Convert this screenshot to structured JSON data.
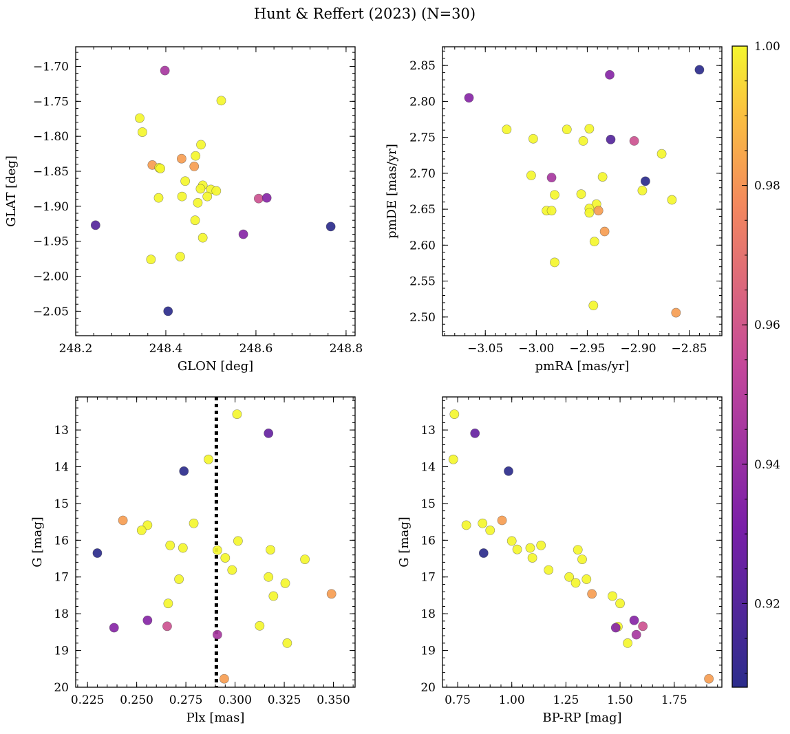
{
  "chart_data": {
    "type": "scatter",
    "title": "Hunt & Reffert (2023) (N=30)",
    "colormap": "plasma",
    "colorbar": {
      "min": 0.908,
      "max": 1.0,
      "ticks": [
        0.92,
        0.94,
        0.96,
        0.98,
        1.0
      ],
      "tick_labels": [
        "0.92",
        "0.94",
        "0.96",
        "0.98",
        "1.00"
      ]
    },
    "grid": false,
    "panels": [
      {
        "key": "pos",
        "xlabel": "GLON [deg]",
        "ylabel": "GLAT [deg]",
        "xlim": [
          248.2,
          248.82
        ],
        "ylim": [
          -2.085,
          -1.672
        ],
        "y_inverted": false,
        "xticks": [
          248.2,
          248.4,
          248.6,
          248.8
        ],
        "xtick_labels": [
          "248.2",
          "248.4",
          "248.6",
          "248.8"
        ],
        "yticks": [
          -2.05,
          -2.0,
          -1.95,
          -1.9,
          -1.85,
          -1.8,
          -1.75,
          -1.7
        ],
        "ytick_labels": [
          "−2.05",
          "−2.00",
          "−1.95",
          "−1.90",
          "−1.85",
          "−1.80",
          "−1.75",
          "−1.70"
        ],
        "x_minor_step": 0.04,
        "y_minor_step": 0.01,
        "points": [
          {
            "x": 248.398,
            "y": -1.706,
            "c": 0.945
          },
          {
            "x": 248.523,
            "y": -1.749,
            "c": 1.0
          },
          {
            "x": 248.342,
            "y": -1.774,
            "c": 1.0
          },
          {
            "x": 248.348,
            "y": -1.794,
            "c": 1.0
          },
          {
            "x": 248.478,
            "y": -1.812,
            "c": 1.0
          },
          {
            "x": 248.466,
            "y": -1.828,
            "c": 1.0
          },
          {
            "x": 248.435,
            "y": -1.832,
            "c": 0.982
          },
          {
            "x": 248.37,
            "y": -1.841,
            "c": 0.982
          },
          {
            "x": 248.463,
            "y": -1.843,
            "c": 0.982
          },
          {
            "x": 248.385,
            "y": -1.845,
            "c": 1.0
          },
          {
            "x": 248.388,
            "y": -1.846,
            "c": 1.0
          },
          {
            "x": 248.443,
            "y": -1.864,
            "c": 1.0
          },
          {
            "x": 248.482,
            "y": -1.87,
            "c": 1.0
          },
          {
            "x": 248.477,
            "y": -1.875,
            "c": 1.0
          },
          {
            "x": 248.5,
            "y": -1.876,
            "c": 1.0
          },
          {
            "x": 248.512,
            "y": -1.878,
            "c": 1.0
          },
          {
            "x": 248.492,
            "y": -1.886,
            "c": 1.0
          },
          {
            "x": 248.436,
            "y": -1.886,
            "c": 1.0
          },
          {
            "x": 248.384,
            "y": -1.888,
            "c": 1.0
          },
          {
            "x": 248.606,
            "y": -1.889,
            "c": 0.958
          },
          {
            "x": 248.624,
            "y": -1.888,
            "c": 0.935
          },
          {
            "x": 248.471,
            "y": -1.895,
            "c": 1.0
          },
          {
            "x": 248.465,
            "y": -1.92,
            "c": 1.0
          },
          {
            "x": 248.244,
            "y": -1.927,
            "c": 0.92
          },
          {
            "x": 248.766,
            "y": -1.929,
            "c": 0.908
          },
          {
            "x": 248.572,
            "y": -1.94,
            "c": 0.935
          },
          {
            "x": 248.482,
            "y": -1.945,
            "c": 1.0
          },
          {
            "x": 248.432,
            "y": -1.972,
            "c": 1.0
          },
          {
            "x": 248.367,
            "y": -1.976,
            "c": 1.0
          },
          {
            "x": 248.405,
            "y": -2.05,
            "c": 0.908
          }
        ]
      },
      {
        "key": "pm",
        "xlabel": "pmRA [mas/yr]",
        "ylabel": "pmDE [mas/yr]",
        "xlim": [
          -3.092,
          -2.818
        ],
        "ylim": [
          2.474,
          2.876
        ],
        "y_inverted": false,
        "xticks": [
          -3.05,
          -3.0,
          -2.95,
          -2.9,
          -2.85
        ],
        "xtick_labels": [
          "−3.05",
          "−3.00",
          "−2.95",
          "−2.90",
          "−2.85"
        ],
        "yticks": [
          2.5,
          2.55,
          2.6,
          2.65,
          2.7,
          2.75,
          2.8,
          2.85
        ],
        "ytick_labels": [
          "2.50",
          "2.55",
          "2.60",
          "2.65",
          "2.70",
          "2.75",
          "2.80",
          "2.85"
        ],
        "x_minor_step": 0.01,
        "y_minor_step": 0.01,
        "points": [
          {
            "x": -2.84,
            "y": 2.844,
            "c": 0.908
          },
          {
            "x": -2.928,
            "y": 2.837,
            "c": 0.935
          },
          {
            "x": -3.066,
            "y": 2.805,
            "c": 0.935
          },
          {
            "x": -3.029,
            "y": 2.761,
            "c": 1.0
          },
          {
            "x": -2.97,
            "y": 2.761,
            "c": 1.0
          },
          {
            "x": -2.948,
            "y": 2.762,
            "c": 1.0
          },
          {
            "x": -3.003,
            "y": 2.748,
            "c": 1.0
          },
          {
            "x": -2.954,
            "y": 2.745,
            "c": 1.0
          },
          {
            "x": -2.927,
            "y": 2.747,
            "c": 0.92
          },
          {
            "x": -2.904,
            "y": 2.745,
            "c": 0.958
          },
          {
            "x": -2.877,
            "y": 2.727,
            "c": 1.0
          },
          {
            "x": -3.005,
            "y": 2.697,
            "c": 1.0
          },
          {
            "x": -2.985,
            "y": 2.694,
            "c": 0.945
          },
          {
            "x": -2.935,
            "y": 2.695,
            "c": 1.0
          },
          {
            "x": -2.893,
            "y": 2.689,
            "c": 0.908
          },
          {
            "x": -2.896,
            "y": 2.676,
            "c": 1.0
          },
          {
            "x": -2.982,
            "y": 2.67,
            "c": 1.0
          },
          {
            "x": -2.956,
            "y": 2.671,
            "c": 1.0
          },
          {
            "x": -2.867,
            "y": 2.663,
            "c": 1.0
          },
          {
            "x": -2.941,
            "y": 2.657,
            "c": 1.0
          },
          {
            "x": -2.948,
            "y": 2.651,
            "c": 1.0
          },
          {
            "x": -2.939,
            "y": 2.648,
            "c": 0.982
          },
          {
            "x": -2.99,
            "y": 2.648,
            "c": 1.0
          },
          {
            "x": -2.985,
            "y": 2.648,
            "c": 1.0
          },
          {
            "x": -2.948,
            "y": 2.645,
            "c": 1.0
          },
          {
            "x": -2.933,
            "y": 2.619,
            "c": 0.982
          },
          {
            "x": -2.943,
            "y": 2.605,
            "c": 1.0
          },
          {
            "x": -2.982,
            "y": 2.576,
            "c": 1.0
          },
          {
            "x": -2.944,
            "y": 2.516,
            "c": 1.0
          },
          {
            "x": -2.863,
            "y": 2.506,
            "c": 0.982
          }
        ]
      },
      {
        "key": "plx",
        "xlabel": "Plx [mas]",
        "ylabel": "G [mag]",
        "xlim": [
          0.219,
          0.361
        ],
        "ylim": [
          20.0,
          12.1
        ],
        "y_inverted": true,
        "xticks": [
          0.225,
          0.25,
          0.275,
          0.3,
          0.325,
          0.35
        ],
        "xtick_labels": [
          "0.225",
          "0.250",
          "0.275",
          "0.300",
          "0.325",
          "0.350"
        ],
        "yticks": [
          13,
          14,
          15,
          16,
          17,
          18,
          19,
          20
        ],
        "ytick_labels": [
          "13",
          "14",
          "15",
          "16",
          "17",
          "18",
          "19",
          "20"
        ],
        "x_minor_step": 0.005,
        "y_minor_step": 0.2,
        "vline": {
          "x": 0.2905,
          "style": "dotted"
        },
        "points": [
          {
            "x": 0.301,
            "y": 12.57,
            "c": 1.0
          },
          {
            "x": 0.317,
            "y": 13.09,
            "c": 0.925
          },
          {
            "x": 0.2865,
            "y": 13.8,
            "c": 1.0
          },
          {
            "x": 0.274,
            "y": 14.12,
            "c": 0.908
          },
          {
            "x": 0.243,
            "y": 15.46,
            "c": 0.982
          },
          {
            "x": 0.279,
            "y": 15.54,
            "c": 1.0
          },
          {
            "x": 0.2555,
            "y": 15.59,
            "c": 1.0
          },
          {
            "x": 0.2525,
            "y": 15.73,
            "c": 1.0
          },
          {
            "x": 0.3015,
            "y": 16.02,
            "c": 1.0
          },
          {
            "x": 0.267,
            "y": 16.14,
            "c": 1.0
          },
          {
            "x": 0.2735,
            "y": 16.21,
            "c": 1.0
          },
          {
            "x": 0.318,
            "y": 16.26,
            "c": 1.0
          },
          {
            "x": 0.291,
            "y": 16.27,
            "c": 1.0
          },
          {
            "x": 0.23,
            "y": 16.35,
            "c": 0.908
          },
          {
            "x": 0.295,
            "y": 16.48,
            "c": 1.0
          },
          {
            "x": 0.3355,
            "y": 16.52,
            "c": 1.0
          },
          {
            "x": 0.2985,
            "y": 16.81,
            "c": 1.0
          },
          {
            "x": 0.317,
            "y": 17.0,
            "c": 1.0
          },
          {
            "x": 0.2715,
            "y": 17.06,
            "c": 1.0
          },
          {
            "x": 0.3255,
            "y": 17.17,
            "c": 1.0
          },
          {
            "x": 0.349,
            "y": 17.46,
            "c": 0.982
          },
          {
            "x": 0.3195,
            "y": 17.52,
            "c": 1.0
          },
          {
            "x": 0.266,
            "y": 17.72,
            "c": 1.0
          },
          {
            "x": 0.2555,
            "y": 18.18,
            "c": 0.935
          },
          {
            "x": 0.3125,
            "y": 18.33,
            "c": 1.0
          },
          {
            "x": 0.2655,
            "y": 18.34,
            "c": 0.958
          },
          {
            "x": 0.2385,
            "y": 18.38,
            "c": 0.935
          },
          {
            "x": 0.291,
            "y": 18.57,
            "c": 0.945
          },
          {
            "x": 0.3265,
            "y": 18.8,
            "c": 1.0
          },
          {
            "x": 0.2945,
            "y": 19.77,
            "c": 0.982
          }
        ]
      },
      {
        "key": "cmd",
        "xlabel": "BP-RP [mag]",
        "ylabel": "G [mag]",
        "xlim": [
          0.68,
          1.97
        ],
        "ylim": [
          20.0,
          12.1
        ],
        "y_inverted": true,
        "xticks": [
          0.75,
          1.0,
          1.25,
          1.5,
          1.75
        ],
        "xtick_labels": [
          "0.75",
          "1.00",
          "1.25",
          "1.50",
          "1.75"
        ],
        "yticks": [
          13,
          14,
          15,
          16,
          17,
          18,
          19,
          20
        ],
        "ytick_labels": [
          "13",
          "14",
          "15",
          "16",
          "17",
          "18",
          "19",
          "20"
        ],
        "x_minor_step": 0.05,
        "y_minor_step": 0.2,
        "points": [
          {
            "x": 0.735,
            "y": 12.57,
            "c": 1.0
          },
          {
            "x": 0.83,
            "y": 13.09,
            "c": 0.925
          },
          {
            "x": 0.73,
            "y": 13.8,
            "c": 1.0
          },
          {
            "x": 0.985,
            "y": 14.12,
            "c": 0.908
          },
          {
            "x": 0.955,
            "y": 15.46,
            "c": 0.982
          },
          {
            "x": 0.865,
            "y": 15.54,
            "c": 1.0
          },
          {
            "x": 0.79,
            "y": 15.59,
            "c": 1.0
          },
          {
            "x": 0.9,
            "y": 15.73,
            "c": 1.0
          },
          {
            "x": 1.0,
            "y": 16.02,
            "c": 1.0
          },
          {
            "x": 1.135,
            "y": 16.14,
            "c": 1.0
          },
          {
            "x": 1.085,
            "y": 16.21,
            "c": 1.0
          },
          {
            "x": 1.025,
            "y": 16.25,
            "c": 1.0
          },
          {
            "x": 1.305,
            "y": 16.26,
            "c": 1.0
          },
          {
            "x": 0.87,
            "y": 16.35,
            "c": 0.908
          },
          {
            "x": 1.095,
            "y": 16.48,
            "c": 1.0
          },
          {
            "x": 1.325,
            "y": 16.52,
            "c": 1.0
          },
          {
            "x": 1.17,
            "y": 16.81,
            "c": 1.0
          },
          {
            "x": 1.265,
            "y": 17.0,
            "c": 1.0
          },
          {
            "x": 1.345,
            "y": 17.06,
            "c": 1.0
          },
          {
            "x": 1.295,
            "y": 17.16,
            "c": 1.0
          },
          {
            "x": 1.37,
            "y": 17.46,
            "c": 0.982
          },
          {
            "x": 1.465,
            "y": 17.52,
            "c": 1.0
          },
          {
            "x": 1.5,
            "y": 17.72,
            "c": 1.0
          },
          {
            "x": 1.565,
            "y": 18.18,
            "c": 0.935
          },
          {
            "x": 1.605,
            "y": 18.34,
            "c": 0.958
          },
          {
            "x": 1.49,
            "y": 18.35,
            "c": 1.0
          },
          {
            "x": 1.48,
            "y": 18.38,
            "c": 0.935
          },
          {
            "x": 1.575,
            "y": 18.57,
            "c": 0.945
          },
          {
            "x": 1.535,
            "y": 18.8,
            "c": 1.0
          },
          {
            "x": 1.91,
            "y": 19.77,
            "c": 0.982
          }
        ]
      }
    ]
  }
}
